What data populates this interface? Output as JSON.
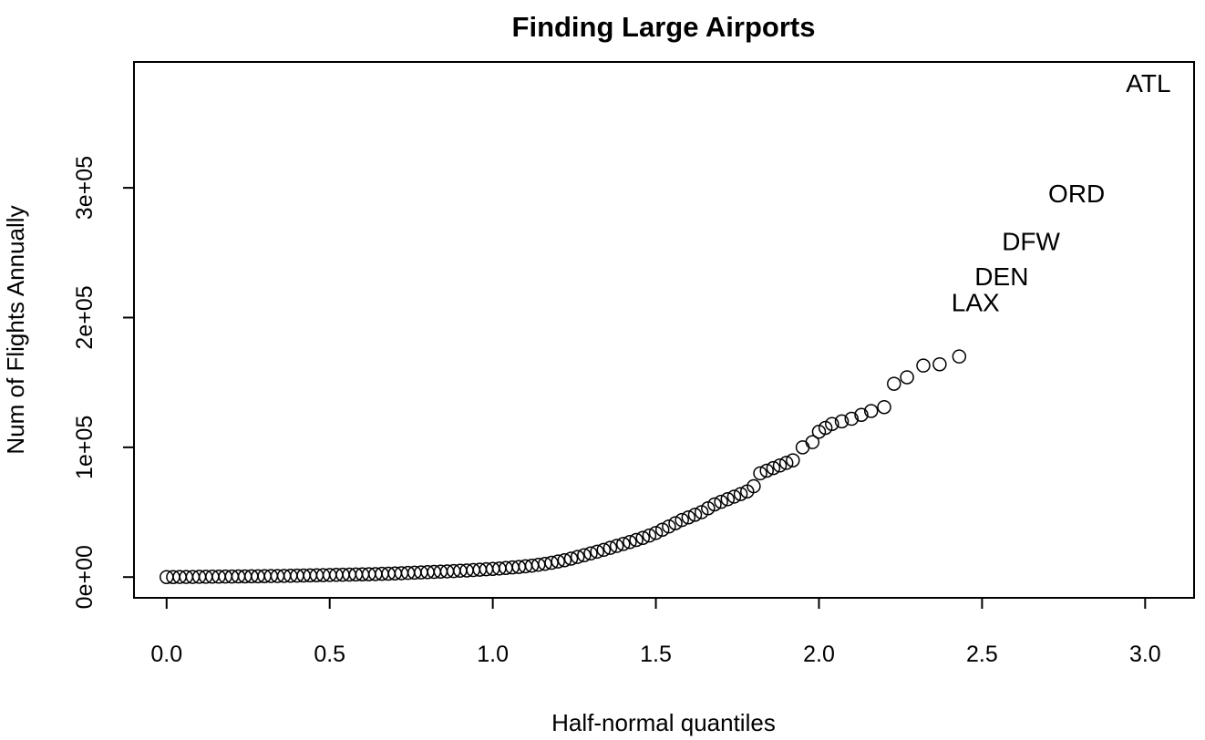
{
  "chart_data": {
    "type": "scatter",
    "title": "Finding Large Airports",
    "xlabel": "Half-normal quantiles",
    "ylabel": "Num of Flights Annually",
    "xlim": [
      -0.1,
      3.15
    ],
    "ylim": [
      -16000,
      397000
    ],
    "x_ticks": [
      {
        "value": 0.0,
        "label": "0.0"
      },
      {
        "value": 0.5,
        "label": "0.5"
      },
      {
        "value": 1.0,
        "label": "1.0"
      },
      {
        "value": 1.5,
        "label": "1.5"
      },
      {
        "value": 2.0,
        "label": "2.0"
      },
      {
        "value": 2.5,
        "label": "2.5"
      },
      {
        "value": 3.0,
        "label": "3.0"
      }
    ],
    "y_ticks": [
      {
        "value": 0,
        "label": "0e+00"
      },
      {
        "value": 100000,
        "label": "1e+05"
      },
      {
        "value": 200000,
        "label": "2e+05"
      },
      {
        "value": 300000,
        "label": "3e+05"
      }
    ],
    "grid": false,
    "legend": "none",
    "series": [
      {
        "x": [
          0.0,
          0.02,
          0.04,
          0.06,
          0.08,
          0.1,
          0.12,
          0.14,
          0.16,
          0.18,
          0.2,
          0.22,
          0.24,
          0.26,
          0.28,
          0.3,
          0.32,
          0.34,
          0.36,
          0.38,
          0.4,
          0.42,
          0.44,
          0.46,
          0.48,
          0.5,
          0.52,
          0.54,
          0.56,
          0.58,
          0.6,
          0.62,
          0.64,
          0.66,
          0.68,
          0.7,
          0.72,
          0.74,
          0.76,
          0.78,
          0.8,
          0.82,
          0.84,
          0.86,
          0.88,
          0.9,
          0.92,
          0.94,
          0.96,
          0.98,
          1.0,
          1.02,
          1.04,
          1.06,
          1.08,
          1.1,
          1.12,
          1.14,
          1.16,
          1.18,
          1.2,
          1.22,
          1.24,
          1.26,
          1.28,
          1.3,
          1.32,
          1.34,
          1.36,
          1.38,
          1.4,
          1.42,
          1.44,
          1.46,
          1.48,
          1.5,
          1.52,
          1.54,
          1.56,
          1.58,
          1.6,
          1.62,
          1.64,
          1.66,
          1.68,
          1.7,
          1.72,
          1.74,
          1.76,
          1.78,
          1.8,
          1.82,
          1.84,
          1.86,
          1.88,
          1.9,
          1.92,
          1.95,
          1.98,
          2.0,
          2.02,
          2.04,
          2.07,
          2.1,
          2.13,
          2.16,
          2.2,
          2.23,
          2.27,
          2.32,
          2.37,
          2.43
        ],
        "y": [
          0,
          0,
          100,
          100,
          100,
          200,
          200,
          300,
          300,
          400,
          400,
          500,
          500,
          600,
          600,
          700,
          800,
          800,
          900,
          1000,
          1100,
          1200,
          1300,
          1400,
          1500,
          1600,
          1700,
          1800,
          1900,
          2000,
          2100,
          2200,
          2300,
          2500,
          2600,
          2800,
          3000,
          3200,
          3400,
          3600,
          3800,
          4000,
          4200,
          4400,
          4600,
          4900,
          5100,
          5400,
          5700,
          6000,
          6300,
          6600,
          7000,
          7400,
          7800,
          8300,
          8800,
          9500,
          10200,
          11000,
          12000,
          13000,
          14200,
          15500,
          16800,
          18200,
          19600,
          21000,
          22500,
          24000,
          25500,
          27000,
          28600,
          30200,
          32000,
          34000,
          36500,
          39000,
          41500,
          44000,
          46000,
          48000,
          50000,
          53000,
          56000,
          58000,
          60000,
          62000,
          64000,
          66000,
          70000,
          80000,
          82000,
          84000,
          86000,
          88000,
          90000,
          100000,
          104000,
          112000,
          115000,
          118000,
          120000,
          122000,
          125000,
          128000,
          131000,
          149000,
          154000,
          163000,
          164000,
          170000
        ]
      }
    ],
    "labeled_points": [
      {
        "label": "LAX",
        "x": 2.48,
        "y": 212000
      },
      {
        "label": "DEN",
        "x": 2.56,
        "y": 232000
      },
      {
        "label": "DFW",
        "x": 2.65,
        "y": 259000
      },
      {
        "label": "ORD",
        "x": 2.79,
        "y": 296000
      },
      {
        "label": "ATL",
        "x": 3.01,
        "y": 381000
      }
    ]
  }
}
